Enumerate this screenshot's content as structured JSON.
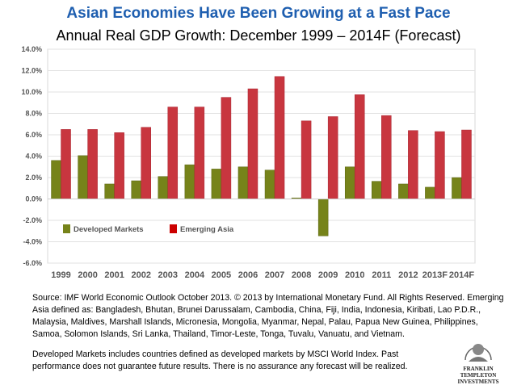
{
  "chart_data": {
    "type": "bar",
    "title": "Asian Economies Have Been Growing at a Fast Pace",
    "subtitle": "Annual Real GDP Growth: December 1999 – 2014F (Forecast)",
    "categories": [
      "1999",
      "2000",
      "2001",
      "2002",
      "2003",
      "2004",
      "2005",
      "2006",
      "2007",
      "2008",
      "2009",
      "2010",
      "2011",
      "2012",
      "2013F",
      "2014F"
    ],
    "series": [
      {
        "name": "Developed Markets",
        "color": "#76831a",
        "values": [
          3.6,
          4.05,
          1.4,
          1.7,
          2.1,
          3.2,
          2.8,
          3.0,
          2.7,
          0.1,
          -3.45,
          3.0,
          1.65,
          1.4,
          1.1,
          2.0
        ]
      },
      {
        "name": "Emerging Asia",
        "color": "#c8363f",
        "values": [
          6.5,
          6.5,
          6.2,
          6.7,
          8.6,
          8.6,
          9.5,
          10.3,
          11.45,
          7.3,
          7.7,
          9.75,
          7.8,
          6.4,
          6.3,
          6.45
        ]
      }
    ],
    "ylim": [
      -6,
      14
    ],
    "yticks": [
      "14.0%",
      "12.0%",
      "10.0%",
      "8.0%",
      "6.0%",
      "4.0%",
      "2.0%",
      "0.0%",
      "-2.0%",
      "-4.0%",
      "-6.0%"
    ],
    "ytick_values": [
      14,
      12,
      10,
      8,
      6,
      4,
      2,
      0,
      -2,
      -4,
      -6
    ],
    "grid": true,
    "legend_placement": "lower-left inside"
  },
  "source_text": "Source: IMF World Economic Outlook October 2013. © 2013 by International Monetary Fund. All Rights Reserved. Emerging Asia defined as: Bangladesh, Bhutan, Brunei Darussalam, Cambodia, China, Fiji, India, Indonesia, Kiribati, Lao P.D.R., Malaysia, Maldives, Marshall Islands, Micronesia, Mongolia, Myanmar, Nepal, Palau, Papua New Guinea, Philippines, Samoa, Solomon Islands, Sri Lanka, Thailand, Timor-Leste, Tonga, Tuvalu, Vanuatu, and Vietnam.",
  "disclaimer_text": "Developed Markets includes countries defined as developed markets by MSCI World Index.  Past  performance does not guarantee  future results. There is no assurance any forecast will be realized.",
  "logo": {
    "line1": "FRANKLIN TEMPLETON",
    "line2": "INVESTMENTS"
  }
}
